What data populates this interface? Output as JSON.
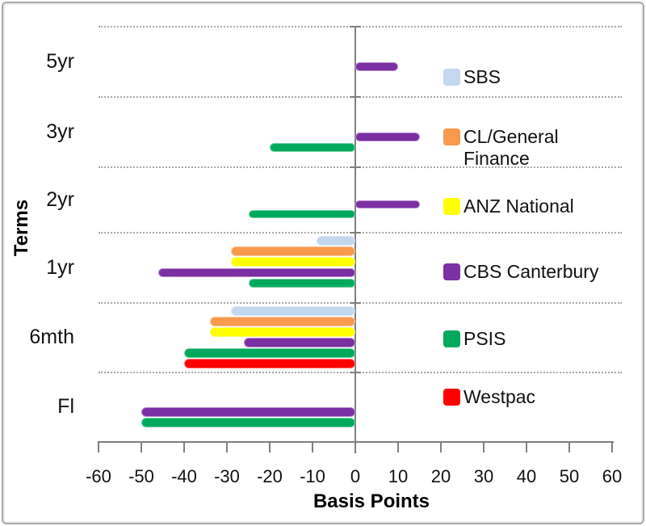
{
  "chart_data": {
    "type": "bar",
    "orientation": "horizontal",
    "title": "",
    "xlabel": "Basis Points",
    "ylabel": "Terms",
    "categories": [
      "5yr",
      "3yr",
      "2yr",
      "1yr",
      "6mth",
      "Fl"
    ],
    "x_ticks": [
      -60,
      -50,
      -40,
      -30,
      -20,
      -10,
      0,
      10,
      20,
      30,
      40,
      50,
      60
    ],
    "xlim": [
      -60,
      60
    ],
    "grid": "dotted horizontal separators between categories",
    "legend_position": "right",
    "series": [
      {
        "name": "SBS",
        "color": "#C3D7EF",
        "values": [
          null,
          null,
          null,
          -9,
          -29,
          null
        ]
      },
      {
        "name": "CL/General Finance",
        "color": "#F9994D",
        "values": [
          null,
          null,
          null,
          -29,
          -34,
          null
        ]
      },
      {
        "name": "ANZ National",
        "color": "#FFFF00",
        "values": [
          null,
          null,
          null,
          -29,
          -34,
          null
        ]
      },
      {
        "name": "CBS Canterbury",
        "color": "#7A2FA2",
        "values": [
          10,
          15,
          15,
          -46,
          -26,
          -50
        ]
      },
      {
        "name": "PSIS",
        "color": "#00A95C",
        "values": [
          null,
          -20,
          -25,
          -25,
          -40,
          -50
        ]
      },
      {
        "name": "Westpac",
        "color": "#FF0000",
        "values": [
          null,
          null,
          null,
          null,
          -40,
          null
        ]
      }
    ]
  },
  "legend": {
    "items": [
      {
        "label": "SBS",
        "color": "#C3D7EF"
      },
      {
        "label": "CL/General Finance",
        "color": "#F9994D"
      },
      {
        "label": "ANZ National",
        "color": "#FFFF00"
      },
      {
        "label": "CBS Canterbury",
        "color": "#7A2FA2"
      },
      {
        "label": "PSIS",
        "color": "#00A95C"
      },
      {
        "label": "Westpac",
        "color": "#FF0000"
      }
    ]
  }
}
